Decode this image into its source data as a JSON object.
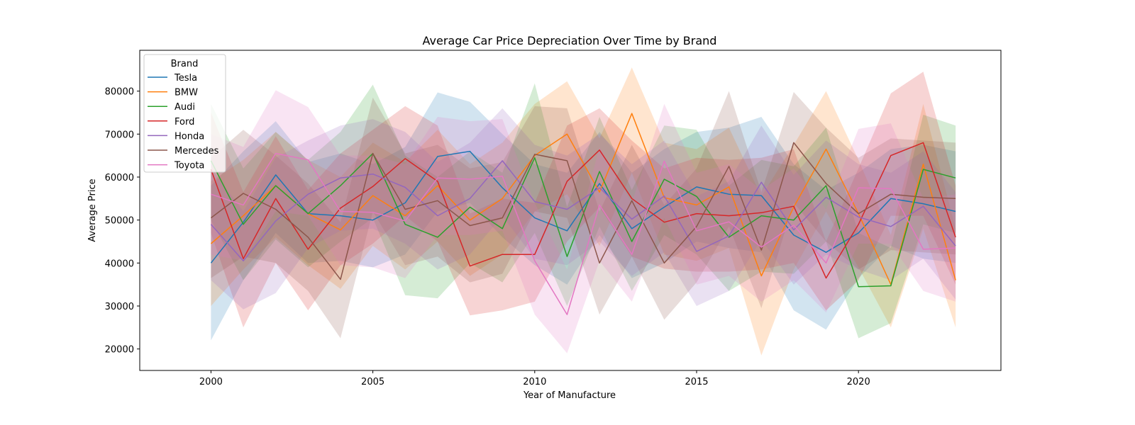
{
  "chart_data": {
    "type": "line",
    "title": "Average Car Price Depreciation Over Time by Brand",
    "xlabel": "Year of Manufacture",
    "ylabel": "Average Price",
    "xlim": [
      1997.8,
      2024.4
    ],
    "ylim": [
      15000,
      89500
    ],
    "xticks": [
      2000,
      2005,
      2010,
      2015,
      2020
    ],
    "yticks": [
      20000,
      30000,
      40000,
      50000,
      60000,
      70000,
      80000
    ],
    "grid": false,
    "legend": {
      "title": "Brand",
      "placement": "top-left"
    },
    "x": [
      2000,
      2001,
      2002,
      2003,
      2004,
      2005,
      2006,
      2007,
      2008,
      2009,
      2010,
      2011,
      2012,
      2013,
      2014,
      2015,
      2016,
      2017,
      2018,
      2019,
      2020,
      2021,
      2022,
      2023
    ],
    "series": [
      {
        "name": "Tesla",
        "color": "#1f77b4",
        "values": [
          40000,
          49500,
          60500,
          51500,
          51000,
          50000,
          54000,
          64800,
          66000,
          57500,
          50500,
          47500,
          58500,
          48000,
          53000,
          57700,
          56000,
          55700,
          46500,
          42500,
          47000,
          55000,
          53800,
          52000
        ],
        "lower": [
          22000,
          36000,
          47000,
          40000,
          40500,
          39000,
          42000,
          52000,
          54000,
          46000,
          39500,
          35000,
          46500,
          36500,
          40000,
          45000,
          43500,
          42500,
          29000,
          24500,
          36500,
          44000,
          41000,
          40000
        ],
        "upper": [
          58000,
          66000,
          73000,
          63500,
          65500,
          63000,
          67000,
          79700,
          77500,
          70000,
          63000,
          61000,
          70500,
          61000,
          66500,
          70500,
          71500,
          74000,
          63000,
          57000,
          61000,
          66500,
          67500,
          66000
        ]
      },
      {
        "name": "BMW",
        "color": "#ff7f0e",
        "values": [
          44500,
          51000,
          58000,
          51500,
          47700,
          55700,
          51000,
          58000,
          50000,
          55000,
          65000,
          70000,
          56500,
          74800,
          55200,
          53500,
          57700,
          37000,
          53000,
          66500,
          51500,
          35000,
          63000,
          36000
        ],
        "lower": [
          30000,
          38500,
          46000,
          39500,
          34000,
          44000,
          38500,
          45000,
          37000,
          42000,
          52000,
          56000,
          44000,
          61000,
          42000,
          40500,
          43500,
          18500,
          38500,
          52000,
          39000,
          25000,
          48000,
          25000
        ],
        "upper": [
          59000,
          64000,
          70500,
          64000,
          60000,
          68000,
          63500,
          71000,
          63000,
          68000,
          77000,
          82300,
          69000,
          85500,
          68000,
          66500,
          71500,
          55500,
          67500,
          80000,
          64000,
          46500,
          77000,
          48000
        ]
      },
      {
        "name": "Audi",
        "color": "#2ca02c",
        "values": [
          63800,
          49000,
          58000,
          51500,
          58000,
          65500,
          49000,
          46000,
          53000,
          48000,
          64500,
          41500,
          61300,
          45000,
          59500,
          55500,
          46000,
          51000,
          50000,
          58000,
          34500,
          34700,
          61800,
          59800
        ],
        "lower": [
          50000,
          36000,
          45500,
          39000,
          45000,
          50500,
          32500,
          31800,
          40000,
          35500,
          47000,
          30000,
          48500,
          33500,
          46500,
          42000,
          33500,
          38000,
          37500,
          45000,
          22500,
          26000,
          49000,
          47000
        ],
        "upper": [
          77000,
          62000,
          70500,
          64000,
          70500,
          81500,
          65000,
          60000,
          66000,
          61000,
          81800,
          53000,
          74000,
          57000,
          72000,
          71000,
          58000,
          64000,
          62500,
          71500,
          47000,
          43500,
          74500,
          72000
        ]
      },
      {
        "name": "Ford",
        "color": "#d62728",
        "values": [
          61800,
          41000,
          55000,
          43200,
          52800,
          57800,
          64300,
          59000,
          39300,
          42000,
          42000,
          59000,
          66300,
          55000,
          49500,
          51500,
          51000,
          51700,
          53200,
          36500,
          49000,
          65000,
          68000,
          46000
        ],
        "lower": [
          47000,
          25000,
          40000,
          29000,
          39500,
          44500,
          51000,
          45000,
          27800,
          29000,
          31000,
          45000,
          53000,
          41500,
          38700,
          38000,
          38000,
          38500,
          40000,
          29000,
          36000,
          51000,
          51000,
          35000
        ],
        "upper": [
          75000,
          56500,
          69500,
          57000,
          65500,
          71000,
          76500,
          72000,
          51500,
          55000,
          54000,
          72000,
          76000,
          68500,
          62000,
          64500,
          64000,
          64500,
          66500,
          45000,
          62000,
          79500,
          84500,
          58000
        ]
      },
      {
        "name": "Honda",
        "color": "#9467bd",
        "values": [
          49000,
          40500,
          49800,
          56000,
          59800,
          60700,
          57600,
          51000,
          55000,
          63800,
          54300,
          52500,
          57500,
          50200,
          55600,
          42700,
          46300,
          58800,
          47700,
          55300,
          50700,
          48500,
          53200,
          44000
        ],
        "lower": [
          36000,
          29200,
          33000,
          43500,
          47500,
          48000,
          44500,
          38500,
          42000,
          51000,
          41000,
          39500,
          45000,
          37000,
          42500,
          30000,
          33500,
          45500,
          35000,
          42000,
          38500,
          36000,
          41000,
          31500
        ],
        "upper": [
          62000,
          52000,
          64500,
          68500,
          72000,
          73500,
          70500,
          63500,
          68000,
          76000,
          67500,
          65000,
          70000,
          63000,
          68500,
          55500,
          59000,
          72000,
          60500,
          68500,
          63000,
          61000,
          66000,
          56500
        ]
      },
      {
        "name": "Mercedes",
        "color": "#8c564b",
        "values": [
          50500,
          56200,
          52500,
          46000,
          36200,
          65500,
          52500,
          54500,
          48700,
          50500,
          65300,
          63800,
          40000,
          54500,
          40000,
          48500,
          62500,
          43000,
          68000,
          58500,
          51500,
          56000,
          55300,
          55000
        ],
        "lower": [
          36500,
          41500,
          40000,
          33500,
          22500,
          52000,
          39500,
          41500,
          35500,
          37500,
          52000,
          50500,
          28000,
          41500,
          26800,
          35500,
          48500,
          29500,
          54000,
          45000,
          38500,
          43000,
          42500,
          42000
        ],
        "upper": [
          64500,
          71000,
          65000,
          58500,
          49500,
          78500,
          65500,
          67500,
          62000,
          63500,
          76500,
          76000,
          52000,
          67500,
          53500,
          62000,
          80000,
          56500,
          79800,
          71500,
          64500,
          69000,
          68500,
          68000
        ]
      },
      {
        "name": "Toyota",
        "color": "#e377c2",
        "values": [
          56000,
          53500,
          65500,
          64000,
          52000,
          51800,
          49800,
          59800,
          59500,
          60200,
          40500,
          28000,
          53500,
          42000,
          63700,
          47500,
          49600,
          43700,
          48800,
          40000,
          57500,
          57300,
          43200,
          43500
        ],
        "lower": [
          42000,
          40500,
          52000,
          51000,
          39500,
          39000,
          36500,
          46500,
          46500,
          47500,
          28000,
          19000,
          40500,
          31000,
          50500,
          35000,
          37000,
          31000,
          36000,
          28500,
          44500,
          44500,
          33500,
          31000
        ],
        "upper": [
          70000,
          67000,
          80200,
          76300,
          65000,
          65000,
          63000,
          74000,
          73000,
          73500,
          54000,
          38500,
          67000,
          54000,
          77000,
          61000,
          63000,
          57000,
          62000,
          52500,
          71200,
          72500,
          55000,
          56000
        ]
      }
    ]
  }
}
